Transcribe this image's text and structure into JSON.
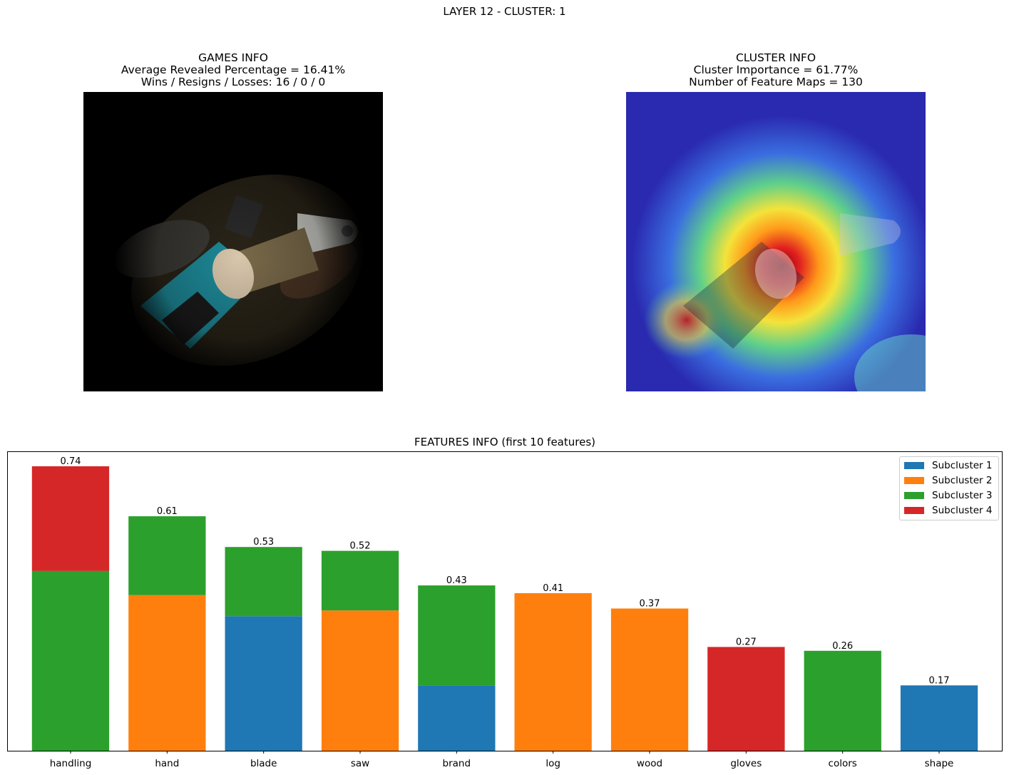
{
  "suptitle": "LAYER 12 - CLUSTER: 1",
  "games_panel": {
    "title": "GAMES INFO",
    "line1": "Average Revealed Percentage = 16.41%",
    "line2": "Wins / Resigns / Losses: 16 / 0 / 0"
  },
  "cluster_panel": {
    "title": "CLUSTER INFO",
    "line1": "Cluster Importance = 61.77%",
    "line2": "Number of Feature Maps = 130"
  },
  "chart_data": {
    "type": "bar",
    "stacked": true,
    "title": "FEATURES INFO (first 10 features)",
    "categories": [
      "handling",
      "hand",
      "blade",
      "saw",
      "brand",
      "log",
      "wood",
      "gloves",
      "colors",
      "shape"
    ],
    "totals": [
      0.74,
      0.61,
      0.53,
      0.52,
      0.43,
      0.41,
      0.37,
      0.27,
      0.26,
      0.17
    ],
    "total_labels": [
      "0.74",
      "0.61",
      "0.53",
      "0.52",
      "0.43",
      "0.41",
      "0.37",
      "0.27",
      "0.26",
      "0.17"
    ],
    "series": [
      {
        "name": "Subcluster 1",
        "color": "#1f77b4",
        "values": [
          0,
          0,
          0.35,
          0,
          0.17,
          0,
          0,
          0,
          0,
          0.17
        ]
      },
      {
        "name": "Subcluster 2",
        "color": "#ff7f0e",
        "values": [
          0,
          0.405,
          0,
          0.365,
          0,
          0.41,
          0.37,
          0,
          0,
          0
        ]
      },
      {
        "name": "Subcluster 3",
        "color": "#2ca02c",
        "values": [
          0.468,
          0.205,
          0.18,
          0.155,
          0.26,
          0,
          0,
          0,
          0.26,
          0
        ]
      },
      {
        "name": "Subcluster 4",
        "color": "#d62728",
        "values": [
          0.272,
          0,
          0,
          0,
          0,
          0,
          0,
          0.27,
          0,
          0
        ]
      }
    ],
    "ylim": [
      0,
      0.777
    ],
    "yticks_visible": false,
    "legend": "top-right",
    "grid": false
  }
}
